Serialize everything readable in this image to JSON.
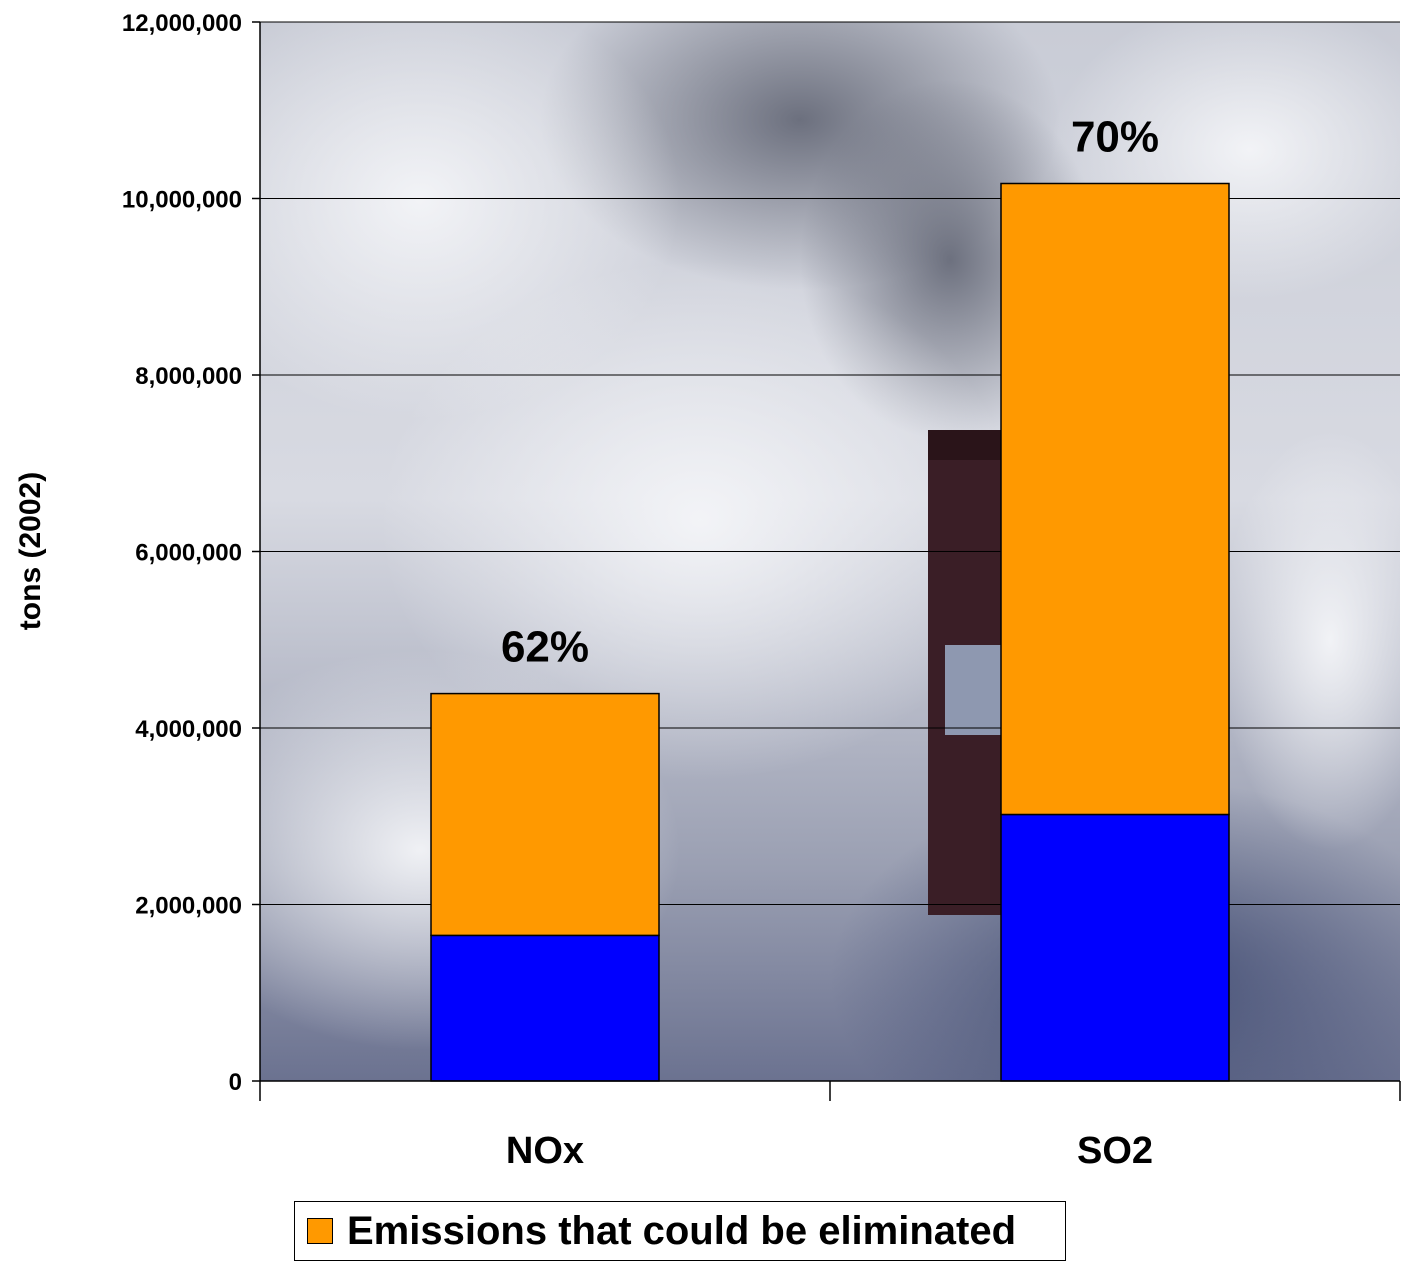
{
  "chart_data": {
    "type": "bar",
    "stacked": true,
    "categories": [
      "NOx",
      "SO2"
    ],
    "series": [
      {
        "name": "",
        "color": "#0000FF",
        "values": [
          1650000,
          3020000
        ]
      },
      {
        "name": "Emissions that could be eliminated",
        "color": "#FF9900",
        "values": [
          2740000,
          7150000
        ]
      }
    ],
    "percent_labels": [
      "62%",
      "70%"
    ],
    "ylabel": "tons (2002)",
    "xlabel": "",
    "title": "",
    "ylim": [
      0,
      12000000
    ],
    "yticks": [
      0,
      2000000,
      4000000,
      6000000,
      8000000,
      10000000,
      12000000
    ],
    "ytick_labels": [
      "0",
      "2,000,000",
      "4,000,000",
      "6,000,000",
      "8,000,000",
      "10,000,000",
      "12,000,000"
    ],
    "grid": true,
    "legend_position": "bottom-center",
    "background": "photo of smokestack emitting smoke against cloudy sky"
  }
}
